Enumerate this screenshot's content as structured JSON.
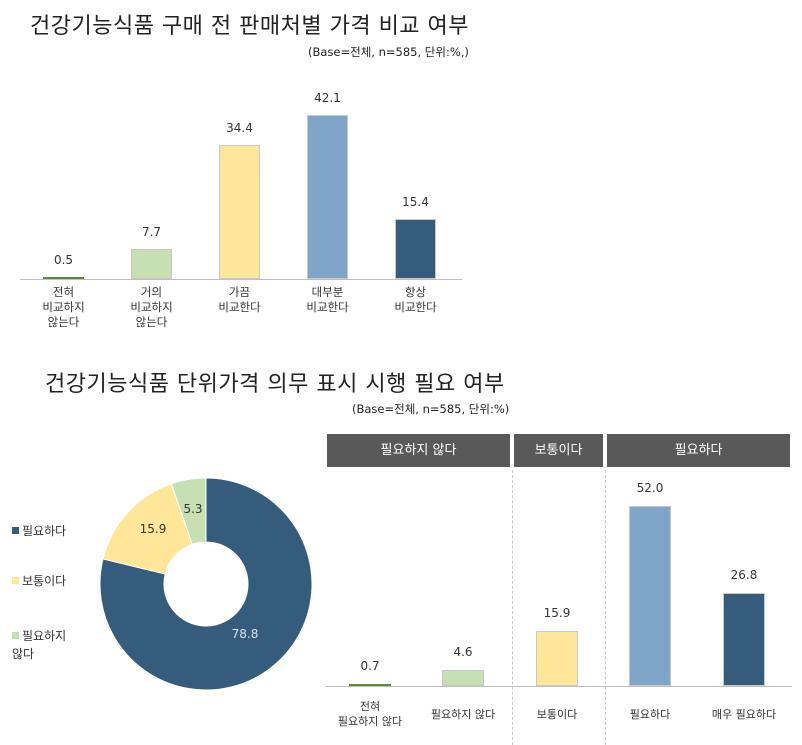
{
  "chart_data": [
    {
      "type": "bar",
      "title": "건강기능식품 구매 전 판매처별 가격 비교 여부",
      "subtitle": "(Base=전체,  n=585,  단위:%,)",
      "categories": [
        "전혀\n비교하지\n않는다",
        "거의\n비교하지\n않는다",
        "가끔\n비교한다",
        "대부분\n비교한다",
        "항상\n비교한다"
      ],
      "values": [
        0.5,
        7.7,
        34.4,
        42.1,
        15.4
      ],
      "value_labels": [
        "0.5",
        "7.7",
        "34.4",
        "42.1",
        "15.4"
      ],
      "colors": [
        "#5a8a3a",
        "#c6e0b4",
        "#ffe699",
        "#7fa6c9",
        "#355c7d"
      ],
      "xlabel": "",
      "ylabel": "",
      "ylim": [
        0,
        45
      ],
      "grid": false
    },
    {
      "type": "pie",
      "title": "건강기능식품 단위가격 의무 표시 시행 필요 여부",
      "subtitle": "(Base=전체,  n=585,  단위:%)",
      "donut": true,
      "labels": [
        "필요하다",
        "보통이다",
        "필요하지 않다"
      ],
      "legend_labels": [
        "필요하다",
        "보통이다",
        "필요하지\n않다"
      ],
      "values": [
        78.8,
        15.9,
        5.3
      ],
      "value_labels": [
        "78.8",
        "15.9",
        "5.3"
      ],
      "colors": [
        "#355c7d",
        "#ffe699",
        "#c6e0b4"
      ],
      "legend_position": "left"
    },
    {
      "type": "bar",
      "group_headers": [
        "필요하지 않다",
        "보통이다",
        "필요하다"
      ],
      "categories": [
        "전혀\n필요하지 않다",
        "필요하지 않다",
        "보통이다",
        "필요하다",
        "매우 필요하다"
      ],
      "values": [
        0.7,
        4.6,
        15.9,
        52.0,
        26.8
      ],
      "value_labels": [
        "0.7",
        "4.6",
        "15.9",
        "52.0",
        "26.8"
      ],
      "colors": [
        "#5a8a3a",
        "#c6e0b4",
        "#ffe699",
        "#7fa6c9",
        "#355c7d"
      ],
      "xlabel": "",
      "ylabel": "",
      "ylim": [
        0,
        55
      ],
      "grid": false
    }
  ]
}
